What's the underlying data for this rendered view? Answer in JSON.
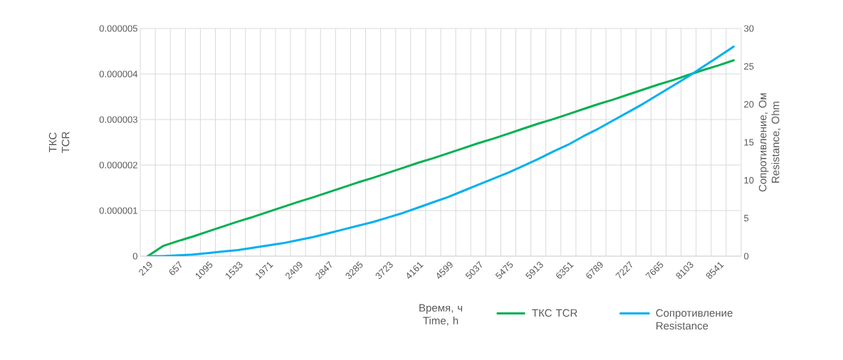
{
  "chart_data": {
    "type": "line",
    "xlabel": "Время, ч Time, h",
    "ylabel": "ТКС TCR",
    "y2label": "Сопротивление, Ом Resistance, Ohm",
    "categories": [
      "219",
      null,
      "657",
      null,
      "1095",
      null,
      "1533",
      null,
      "1971",
      null,
      "2409",
      null,
      "2847",
      null,
      "3285",
      null,
      "3723",
      null,
      "4161",
      null,
      "4599",
      null,
      "5037",
      null,
      "5475",
      null,
      "5913",
      null,
      "6351",
      null,
      "6789",
      null,
      "7227",
      null,
      "7665",
      null,
      "8103",
      null,
      "8541",
      null
    ],
    "series": [
      {
        "name": "ТКС TCR",
        "color": "#00b050",
        "values": [
          0,
          2.2e-07,
          3.3e-07,
          4.3e-07,
          5.4e-07,
          6.5e-07,
          7.6e-07,
          8.6e-07,
          9.7e-07,
          1.08e-06,
          1.19e-06,
          1.29e-06,
          1.4e-06,
          1.51e-06,
          1.62e-06,
          1.72e-06,
          1.83e-06,
          1.94e-06,
          2.05e-06,
          2.15e-06,
          2.26e-06,
          2.37e-06,
          2.48e-06,
          2.58e-06,
          2.69e-06,
          2.8e-06,
          2.91e-06,
          3.01e-06,
          3.12e-06,
          3.23e-06,
          3.34e-06,
          3.44e-06,
          3.55e-06,
          3.66e-06,
          3.77e-06,
          3.87e-06,
          3.98e-06,
          4.09e-06,
          4.19e-06,
          4.3e-06
        ]
      },
      {
        "name": "Сопротивление Resistance",
        "color": "#00b0f0",
        "axis": "y2",
        "values": [
          0,
          0.0,
          0.1,
          0.2,
          0.4,
          0.6,
          0.8,
          1.1,
          1.4,
          1.7,
          2.1,
          2.5,
          3.0,
          3.5,
          4.0,
          4.5,
          5.1,
          5.7,
          6.4,
          7.1,
          7.8,
          8.6,
          9.4,
          10.2,
          11.0,
          11.9,
          12.8,
          13.8,
          14.7,
          15.8,
          16.8,
          17.9,
          19.0,
          20.1,
          21.3,
          22.5,
          23.7,
          25.0,
          26.3,
          27.6
        ]
      }
    ],
    "ylim": [
      0,
      5e-06
    ],
    "yticks": [
      0,
      {
        "value": 1e-06,
        "label": "0.000001"
      },
      {
        "value": 2e-06,
        "label": "0.000002"
      },
      {
        "value": 3e-06,
        "label": "0.000003"
      },
      {
        "value": 4e-06,
        "label": "0.000004"
      },
      {
        "value": 5e-06,
        "label": "0.000005"
      }
    ],
    "y2lim": [
      0,
      30
    ],
    "y2ticks": [
      0,
      5,
      10,
      15,
      20,
      25,
      30
    ],
    "grid": true,
    "legend": "bottom right",
    "marker": "none",
    "line_style": "solid"
  }
}
